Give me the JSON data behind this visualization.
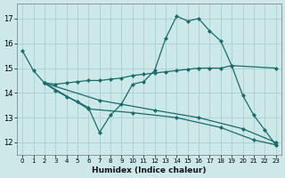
{
  "xlabel": "Humidex (Indice chaleur)",
  "bg_color": "#cce8e8",
  "grid_color": "#aacfcf",
  "line_color": "#1a6b6b",
  "xlim": [
    -0.5,
    23.5
  ],
  "ylim": [
    11.5,
    17.6
  ],
  "yticks": [
    12,
    13,
    14,
    15,
    16,
    17
  ],
  "xticks": [
    0,
    1,
    2,
    3,
    4,
    5,
    6,
    7,
    8,
    9,
    10,
    11,
    12,
    13,
    14,
    15,
    16,
    17,
    18,
    19,
    20,
    21,
    22,
    23
  ],
  "line1_x": [
    0,
    1,
    2,
    3,
    4,
    5,
    6,
    7,
    8,
    9,
    10,
    11,
    12,
    13,
    14,
    15,
    16,
    17,
    18,
    19,
    20,
    21,
    22,
    23
  ],
  "line1_y": [
    15.7,
    14.9,
    14.4,
    14.1,
    13.85,
    13.65,
    13.4,
    12.4,
    13.1,
    13.55,
    14.35,
    14.45,
    14.9,
    16.2,
    17.1,
    16.9,
    17.0,
    16.5,
    16.1,
    15.1,
    13.9,
    13.1,
    12.5,
    11.9
  ],
  "line2_x": [
    2,
    3,
    4,
    5,
    6,
    7,
    8,
    9,
    10,
    11,
    12,
    13,
    14,
    15,
    16,
    17,
    18,
    19,
    23
  ],
  "line2_y": [
    14.4,
    14.35,
    14.4,
    14.45,
    14.5,
    14.5,
    14.55,
    14.6,
    14.7,
    14.75,
    14.8,
    14.85,
    14.9,
    14.95,
    15.0,
    15.0,
    15.0,
    15.1,
    15.0
  ],
  "line3_x": [
    2,
    7,
    12,
    16,
    20,
    23
  ],
  "line3_y": [
    14.4,
    13.7,
    13.3,
    13.0,
    12.55,
    12.0
  ],
  "line4_x": [
    2,
    6,
    10,
    14,
    18,
    21,
    23
  ],
  "line4_y": [
    14.4,
    13.35,
    13.2,
    13.0,
    12.6,
    12.1,
    11.9
  ]
}
